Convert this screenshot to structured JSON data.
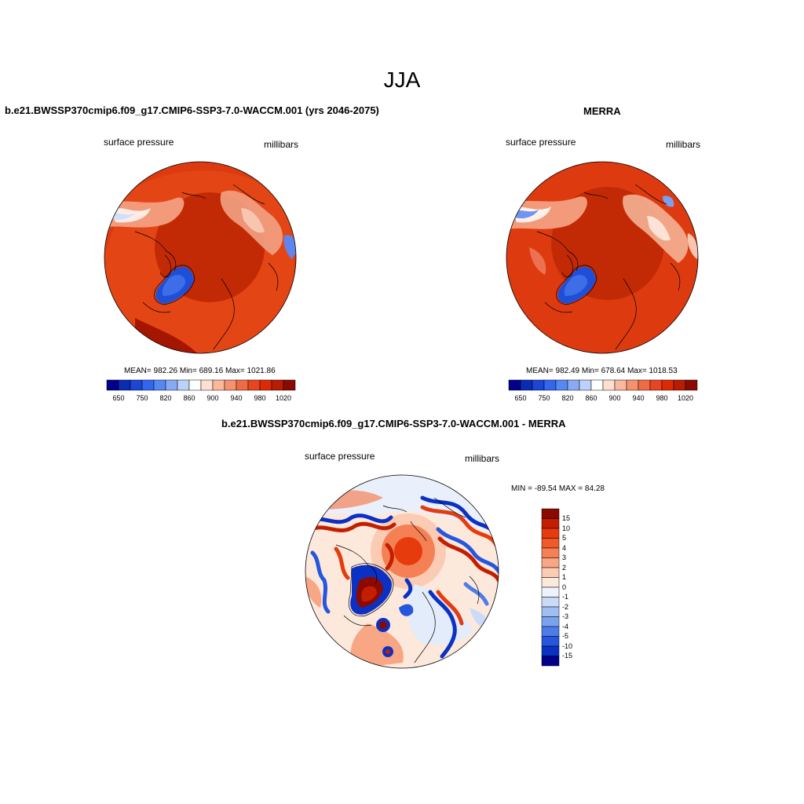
{
  "title": "JJA",
  "panels": {
    "left": {
      "case_title": "b.e21.BWSSP370cmip6.f09_g17.CMIP6-SSP3-7.0-WACCM.001 (yrs 2046-2075)",
      "variable": "surface pressure",
      "units": "millibars",
      "stats": "MEAN= 982.26  Min= 689.16  Max= 1021.86"
    },
    "right": {
      "case_title": "MERRA",
      "variable": "surface pressure",
      "units": "millibars",
      "stats": "MEAN= 982.49  Min= 678.64  Max= 1018.53"
    },
    "diff": {
      "case_title": "b.e21.BWSSP370cmip6.f09_g17.CMIP6-SSP3-7.0-WACCM.001 - MERRA",
      "variable": "surface pressure",
      "units": "millibars",
      "stats": "MIN = -89.54 MAX =  84.28"
    }
  },
  "colorbar_abs": {
    "colors": [
      "#00008b",
      "#0a2bb3",
      "#1b46d6",
      "#3366ee",
      "#5588f2",
      "#88aaf5",
      "#bcd2fa",
      "#ffffff",
      "#fde0d0",
      "#fbb89c",
      "#f7906e",
      "#f06a45",
      "#e84420",
      "#dd2a05",
      "#b81c03",
      "#8b0a00"
    ],
    "tick_labels": [
      "650",
      "750",
      "820",
      "860",
      "900",
      "940",
      "980",
      "1020"
    ]
  },
  "colorbar_diff": {
    "colors": [
      "#8b0a00",
      "#c41e00",
      "#e63b0d",
      "#f05a28",
      "#f58055",
      "#f8a684",
      "#fbcbb3",
      "#fde8dc",
      "#eef2fb",
      "#c9dbf7",
      "#9fbff3",
      "#7aa3ef",
      "#4d7ce8",
      "#2457dd",
      "#0b30c4",
      "#00008b"
    ],
    "tick_labels": [
      "15",
      "10",
      "5",
      "4",
      "3",
      "2",
      "1",
      "0",
      "-1",
      "-2",
      "-3",
      "-4",
      "-5",
      "-10",
      "-15"
    ]
  }
}
